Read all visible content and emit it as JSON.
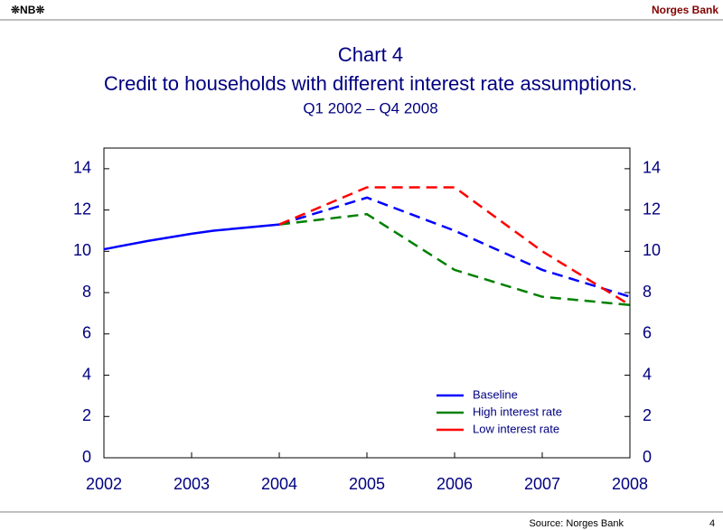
{
  "header": {
    "logo": "❊NB❊",
    "organization": "Norges Bank"
  },
  "chart_data": {
    "type": "line",
    "title": "Chart 4",
    "subtitle": "Credit to households with different interest rate assumptions.",
    "period": "Q1 2002 – Q4 2008",
    "xlim": [
      2002,
      2008
    ],
    "xticks": [
      2002,
      2003,
      2004,
      2005,
      2006,
      2007,
      2008
    ],
    "ylim": [
      0,
      15
    ],
    "yticks": [
      0,
      2,
      4,
      6,
      8,
      10,
      12,
      14
    ],
    "series": [
      {
        "color": "#0000ff",
        "dashed": false,
        "x": [
          2002,
          2002.5,
          2003,
          2003.25,
          2004
        ],
        "values": [
          10.1,
          10.5,
          10.85,
          11.0,
          11.3
        ]
      },
      {
        "name": "Baseline",
        "color": "#0000ff",
        "dashed": true,
        "x": [
          2004,
          2005,
          2006,
          2007,
          2008
        ],
        "values": [
          11.3,
          12.6,
          11.0,
          9.1,
          7.8
        ]
      },
      {
        "name": "High interest rate",
        "color": "#008000",
        "dashed": true,
        "x": [
          2004,
          2005,
          2006,
          2007,
          2008
        ],
        "values": [
          11.3,
          11.8,
          9.1,
          7.8,
          7.4
        ]
      },
      {
        "name": "Low interest rate",
        "color": "#ff0000",
        "dashed": true,
        "x": [
          2004,
          2005,
          2006,
          2007,
          2008
        ],
        "values": [
          11.3,
          13.1,
          13.1,
          10.0,
          7.4
        ]
      }
    ]
  },
  "footer": {
    "source": "Source: Norges Bank",
    "page": "4"
  }
}
